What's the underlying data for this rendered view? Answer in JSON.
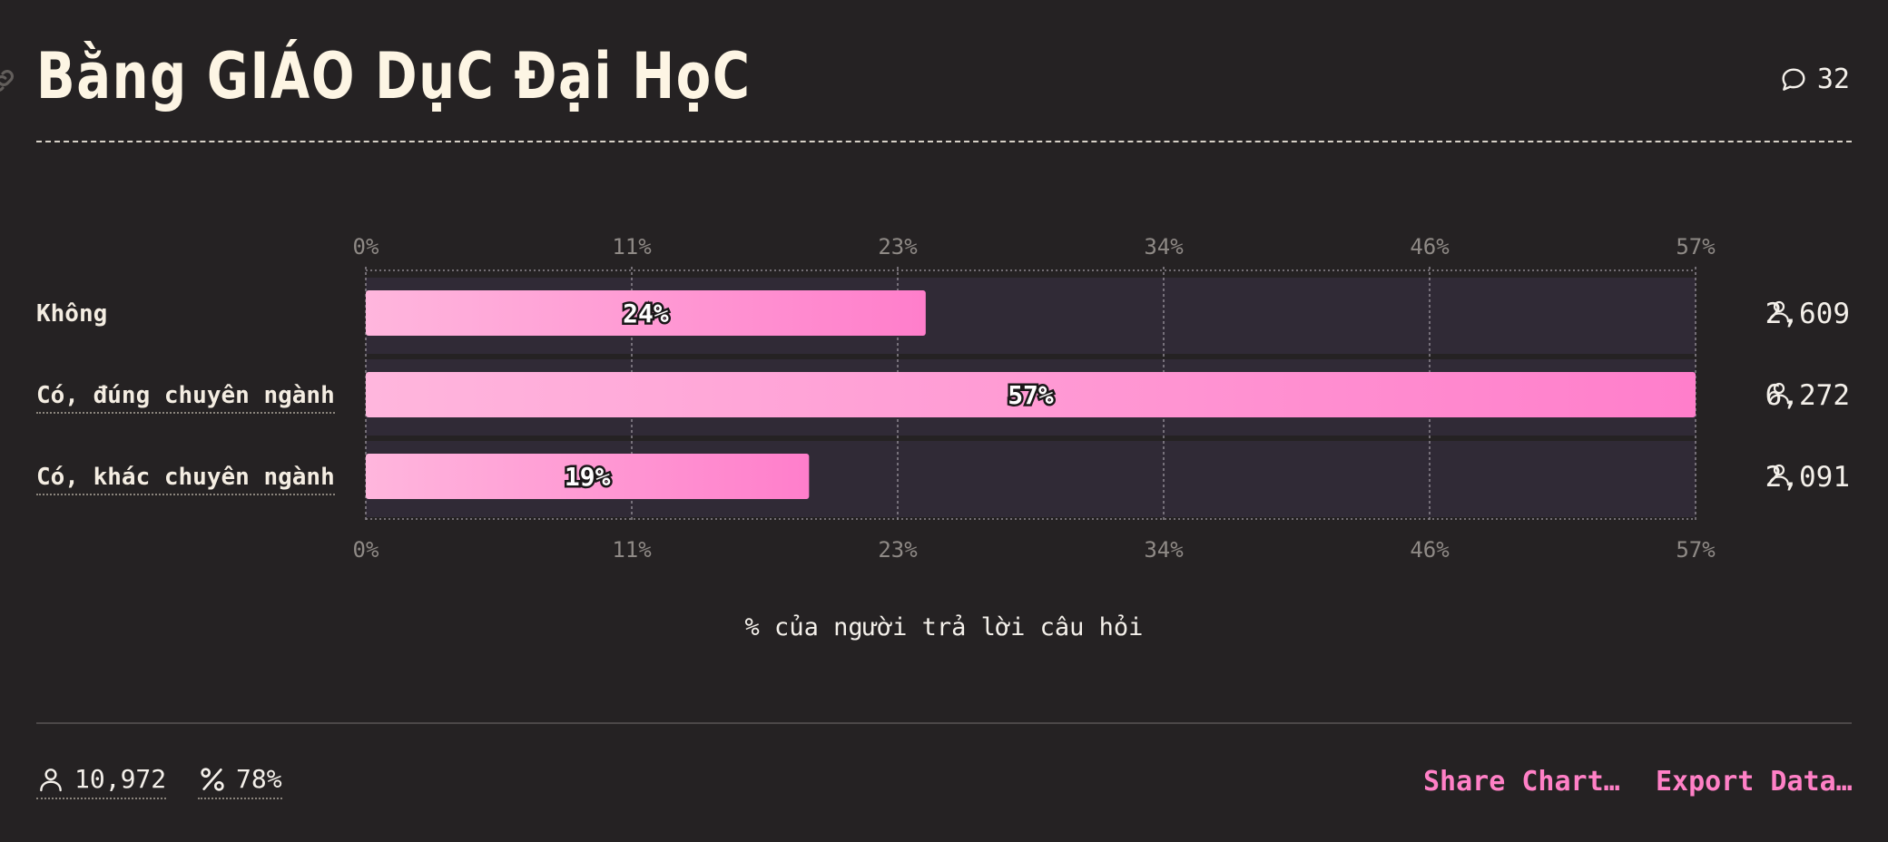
{
  "header": {
    "title": "Bằng GIÁO DụC Đại HọC",
    "comment_count": "32"
  },
  "chart_data": {
    "type": "bar",
    "orientation": "horizontal",
    "categories": [
      "Không",
      "Có, đúng chuyên ngành",
      "Có, khác chuyên ngành"
    ],
    "values": [
      24,
      57,
      19
    ],
    "value_labels": [
      "24%",
      "57%",
      "19%"
    ],
    "counts": [
      "2,609",
      "6,272",
      "2,091"
    ],
    "xlim": [
      0,
      57
    ],
    "ticks": [
      "0%",
      "11%",
      "23%",
      "34%",
      "46%",
      "57%"
    ],
    "xlabel": "% của người trả lời câu hỏi",
    "grid": true,
    "colors": {
      "bar_start": "#ffb6dd",
      "bar_end": "#ff7ecb",
      "track": "#302a36"
    }
  },
  "footer": {
    "respondents": "10,972",
    "percent": "78%",
    "share_label": "Share Chart…",
    "export_label": "Export Data…"
  }
}
